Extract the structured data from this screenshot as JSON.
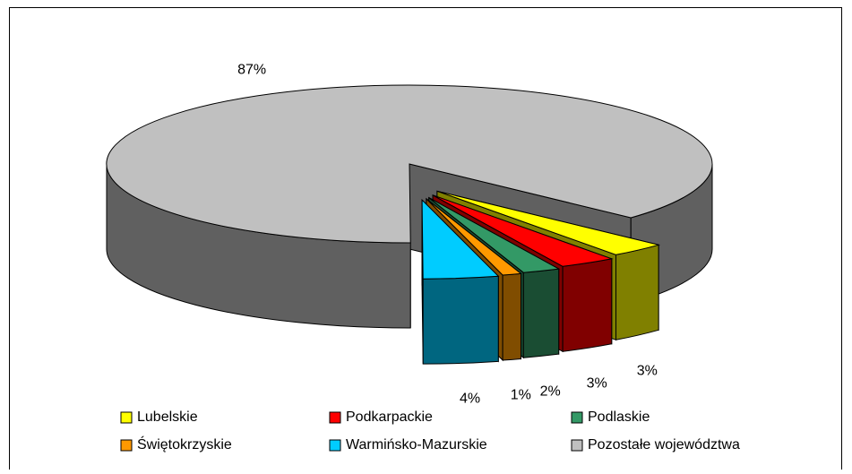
{
  "chart_data": {
    "type": "pie3d",
    "categories": [
      "Lubelskie",
      "Podkarpackie",
      "Podlaskie",
      "Świętokrzyskie",
      "Warmińsko-Mazurskie",
      "Pozostałe województwa"
    ],
    "values": [
      3,
      3,
      2,
      1,
      4,
      87
    ],
    "value_labels": [
      "3%",
      "3%",
      "2%",
      "1%",
      "4%",
      "87%"
    ],
    "colors": [
      "#ffff00",
      "#ff0000",
      "#339966",
      "#ff9900",
      "#00ccff",
      "#c0c0c0"
    ],
    "legend": "bottom"
  }
}
